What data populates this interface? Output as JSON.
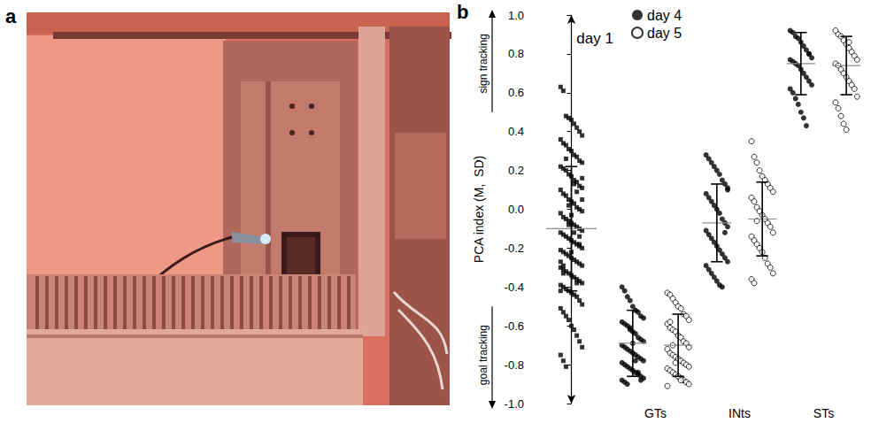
{
  "panel_letters": [
    "a",
    "b"
  ],
  "chart_data": {
    "type": "scatter",
    "title": "day 1",
    "ylabel": "PCA index (M,  SD)",
    "annotations": {
      "top": "sign tracking",
      "bottom": "goal tracking"
    },
    "categories": [
      null,
      "GTs",
      "INts",
      "STs"
    ],
    "ylim": [
      -1,
      1
    ],
    "yticks": [
      {
        "value": -1,
        "label": "-1.0"
      },
      {
        "value": -0.8,
        "label": "-0.8"
      },
      {
        "value": -0.6,
        "label": "-0.6"
      },
      {
        "value": -0.4,
        "label": "-0.4"
      },
      {
        "value": -0.2,
        "label": "-0.2"
      },
      {
        "value": 0,
        "label": "0.0"
      },
      {
        "value": 0.2,
        "label": "0.2"
      },
      {
        "value": 0.4,
        "label": "0.4"
      },
      {
        "value": 0.6,
        "label": "0.6"
      },
      {
        "value": 0.8,
        "label": "0.8"
      },
      {
        "value": 1,
        "label": "1.0"
      }
    ],
    "grid": false,
    "legend": "top",
    "series": [
      {
        "color": "#000000",
        "marker": "square",
        "values": [
          [
            0.63,
            0.61,
            0.48,
            0.47,
            0.46,
            0.44,
            0.42,
            0.4,
            0.38,
            0.36,
            0.34,
            0.33,
            0.31,
            0.3,
            0.28,
            0.27,
            0.25,
            0.24,
            0.22,
            0.21,
            0.2,
            0.18,
            0.17,
            0.15,
            0.14,
            0.12,
            0.11,
            0.1,
            0.08,
            0.07,
            0.05,
            0.04,
            0.03,
            0.01,
            0.0,
            -0.01,
            -0.02,
            -0.04,
            -0.05,
            -0.06,
            -0.07,
            -0.08,
            -0.09,
            -0.1,
            -0.11,
            -0.12,
            -0.13,
            -0.14,
            -0.15,
            -0.16,
            -0.17,
            -0.18,
            -0.19,
            -0.2,
            -0.21,
            -0.22,
            -0.23,
            -0.24,
            -0.25,
            -0.26,
            -0.27,
            -0.28,
            -0.29,
            -0.3,
            -0.31,
            -0.32,
            -0.33,
            -0.34,
            -0.35,
            -0.36,
            -0.37,
            -0.38,
            -0.39,
            -0.4,
            -0.41,
            -0.42,
            -0.43,
            -0.44,
            -0.45,
            -0.47,
            -0.49,
            -0.51,
            -0.53,
            -0.55,
            -0.57,
            -0.6,
            -0.62,
            -0.65,
            -0.68,
            -0.71,
            -0.75,
            -0.78,
            -0.81,
            0.02,
            -0.03,
            -0.12,
            0.09,
            -0.18,
            0.16,
            -0.27,
            -0.33,
            0.26,
            -0.08,
            -0.22,
            0.13,
            -0.38,
            -0.14,
            0.05,
            -0.42,
            -0.29
          ],
          null,
          null,
          null
        ],
        "mean": [
          -0.1,
          null,
          null,
          null
        ],
        "sd": [
          0.32,
          null,
          null,
          null
        ]
      },
      {
        "name": "day 4",
        "color": "#000000",
        "marker": "circle",
        "values": [
          null,
          [
            -0.4,
            -0.42,
            -0.45,
            -0.47,
            -0.5,
            -0.52,
            -0.53,
            -0.55,
            -0.56,
            -0.58,
            -0.59,
            -0.6,
            -0.62,
            -0.63,
            -0.64,
            -0.66,
            -0.67,
            -0.68,
            -0.7,
            -0.71,
            -0.72,
            -0.73,
            -0.74,
            -0.75,
            -0.76,
            -0.77,
            -0.78,
            -0.79,
            -0.8,
            -0.81,
            -0.82,
            -0.83,
            -0.84,
            -0.85,
            -0.86,
            -0.87,
            -0.88,
            -0.89,
            -0.9,
            -0.61,
            -0.69,
            -0.78,
            -0.84,
            -0.88
          ],
          [
            0.28,
            0.26,
            0.24,
            0.22,
            0.2,
            0.18,
            0.15,
            0.13,
            0.11,
            0.08,
            0.06,
            0.04,
            0.02,
            0.0,
            -0.02,
            -0.05,
            -0.07,
            -0.09,
            -0.11,
            -0.13,
            -0.15,
            -0.17,
            -0.19,
            -0.21,
            -0.23,
            -0.25,
            -0.27,
            -0.29,
            -0.31,
            -0.33,
            -0.35,
            -0.37,
            -0.39,
            -0.4,
            -0.12,
            0.1
          ],
          [
            0.92,
            0.91,
            0.89,
            0.88,
            0.86,
            0.84,
            0.82,
            0.8,
            0.78,
            0.77,
            0.76,
            0.75,
            0.74,
            0.72,
            0.7,
            0.68,
            0.66,
            0.64,
            0.62,
            0.6,
            0.57,
            0.54,
            0.5,
            0.47,
            0.43,
            0.8
          ]
        ],
        "mean": [
          null,
          -0.69,
          -0.07,
          0.75
        ],
        "sd": [
          null,
          0.17,
          0.2,
          0.16
        ]
      },
      {
        "name": "day 5",
        "color": "#000000",
        "marker": "hollow",
        "values": [
          null,
          [
            -0.43,
            -0.44,
            -0.46,
            -0.48,
            -0.5,
            -0.51,
            -0.54,
            -0.55,
            -0.57,
            -0.59,
            -0.61,
            -0.62,
            -0.63,
            -0.65,
            -0.66,
            -0.68,
            -0.69,
            -0.71,
            -0.72,
            -0.74,
            -0.75,
            -0.76,
            -0.77,
            -0.78,
            -0.79,
            -0.8,
            -0.81,
            -0.82,
            -0.83,
            -0.84,
            -0.85,
            -0.86,
            -0.87,
            -0.88,
            -0.89,
            -0.9,
            -0.91,
            -0.58,
            -0.7,
            -0.79,
            -0.86,
            -0.88
          ],
          [
            0.35,
            0.27,
            0.24,
            0.2,
            0.17,
            0.15,
            0.13,
            0.11,
            0.09,
            0.06,
            0.04,
            0.01,
            -0.01,
            -0.03,
            -0.05,
            -0.07,
            -0.09,
            -0.12,
            -0.14,
            -0.16,
            -0.18,
            -0.2,
            -0.22,
            -0.25,
            -0.28,
            -0.3,
            -0.33,
            -0.36,
            -0.38,
            -0.06
          ],
          [
            0.92,
            0.9,
            0.89,
            0.87,
            0.85,
            0.83,
            0.81,
            0.79,
            0.77,
            0.75,
            0.74,
            0.72,
            0.7,
            0.68,
            0.66,
            0.64,
            0.62,
            0.58,
            0.55,
            0.52,
            0.48,
            0.44,
            0.41,
            0.86
          ]
        ],
        "mean": [
          null,
          -0.7,
          -0.05,
          0.74
        ],
        "sd": [
          null,
          0.16,
          0.19,
          0.15
        ]
      }
    ]
  }
}
